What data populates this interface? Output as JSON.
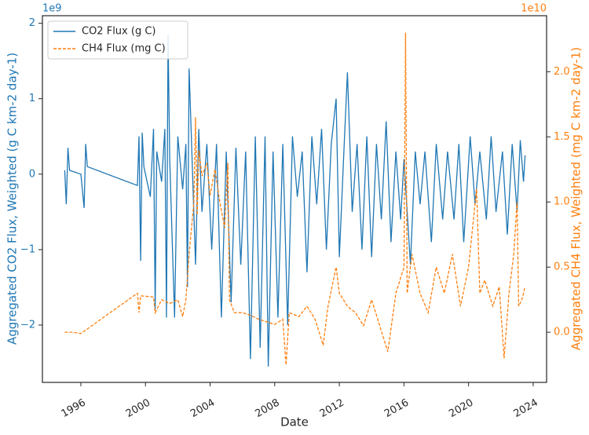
{
  "chart_data": {
    "type": "line",
    "xlabel": "Date",
    "ylabel": "Aggregated CO2 Flux, Weighted (g C km-2 day-1)",
    "y2label": "Aggregated CH4 Flux, Weighted (mg C km-2 day-1)",
    "y_offset": "1e9",
    "y2_offset": "1e10",
    "xlim": [
      1993.62,
      2024.83
    ],
    "xticks": [
      1996,
      2000,
      2004,
      2008,
      2012,
      2016,
      2020,
      2024
    ],
    "ylim": [
      -2.76,
      2.1
    ],
    "yticks": [
      {
        "value": -2,
        "label": "−2"
      },
      {
        "value": -1,
        "label": "−1"
      },
      0,
      1,
      2
    ],
    "y2lim": [
      -0.385,
      2.43
    ],
    "y2ticks": [
      {
        "value": 0,
        "label": "0.0"
      },
      0.5,
      {
        "value": 1,
        "label": "1.0"
      },
      1.5,
      {
        "value": 2,
        "label": "2.0"
      }
    ],
    "legend": "upper left",
    "grid": false,
    "series": [
      {
        "name": "CO2 Flux (g C)",
        "color": "#1f77b4",
        "linestyle": "solid",
        "axis": "y",
        "x": [
          1995.0,
          1995.1,
          1995.2,
          1995.3,
          1996.0,
          1996.2,
          1996.3,
          1996.4,
          1999.5,
          1999.6,
          1999.7,
          1999.8,
          1999.9,
          2000.3,
          2000.5,
          2000.6,
          2000.7,
          2001.0,
          2001.2,
          2001.3,
          2001.4,
          2001.5,
          2001.8,
          2002.0,
          2002.3,
          2002.5,
          2002.6,
          2002.7,
          2002.9,
          2003.1,
          2003.3,
          2003.5,
          2003.8,
          2004.1,
          2004.4,
          2004.7,
          2005.0,
          2005.3,
          2005.6,
          2005.9,
          2006.2,
          2006.5,
          2006.8,
          2007.1,
          2007.4,
          2007.6,
          2007.9,
          2008.2,
          2008.5,
          2008.8,
          2009.1,
          2009.4,
          2009.7,
          2010.0,
          2010.3,
          2010.6,
          2010.9,
          2011.2,
          2011.5,
          2011.8,
          2012.0,
          2012.3,
          2012.5,
          2012.8,
          2013.1,
          2013.4,
          2013.7,
          2014.0,
          2014.3,
          2014.6,
          2014.9,
          2015.2,
          2015.5,
          2015.8,
          2016.0,
          2016.4,
          2016.7,
          2017.0,
          2017.3,
          2017.7,
          2018.0,
          2018.4,
          2018.7,
          2019.1,
          2019.4,
          2019.7,
          2020.1,
          2020.4,
          2020.7,
          2021.1,
          2021.4,
          2021.7,
          2022.1,
          2022.4,
          2022.7,
          2023.0,
          2023.2,
          2023.4,
          2023.5
        ],
        "values": [
          0.05,
          -0.4,
          0.35,
          0.05,
          0.0,
          -0.45,
          0.4,
          0.1,
          -0.15,
          0.5,
          -1.15,
          0.55,
          0.1,
          -0.3,
          0.6,
          -1.8,
          0.3,
          -0.1,
          0.6,
          -1.9,
          1.85,
          0.2,
          -1.9,
          0.5,
          -0.2,
          0.4,
          -1.5,
          1.4,
          0.1,
          -1.2,
          0.6,
          -0.5,
          0.4,
          -1.0,
          0.4,
          -1.9,
          0.3,
          -1.7,
          0.35,
          -1.2,
          0.3,
          -2.45,
          0.5,
          -2.3,
          0.5,
          -2.55,
          0.3,
          -1.9,
          0.4,
          -2.0,
          0.5,
          -0.3,
          0.3,
          -1.3,
          0.5,
          -0.4,
          0.6,
          -1.0,
          0.4,
          1.0,
          -1.1,
          0.4,
          1.35,
          -0.5,
          0.4,
          -1.0,
          0.5,
          -1.1,
          0.4,
          -0.6,
          0.7,
          -0.9,
          0.3,
          -0.6,
          0.2,
          -1.2,
          0.3,
          -0.4,
          0.3,
          -0.9,
          0.4,
          -0.6,
          0.3,
          -0.6,
          0.4,
          -0.9,
          0.5,
          -0.4,
          0.3,
          -0.6,
          0.5,
          -0.5,
          0.3,
          -0.8,
          0.4,
          -0.5,
          0.45,
          -0.1,
          0.25
        ]
      },
      {
        "name": "CH4 Flux (mg C)",
        "color": "#ff7f0e",
        "linestyle": "dashed",
        "axis": "y2",
        "x": [
          1995.0,
          1995.5,
          1996.0,
          1999.5,
          1999.6,
          1999.7,
          2000.5,
          2000.6,
          2001.0,
          2001.5,
          2002.0,
          2002.3,
          2002.5,
          2002.7,
          2003.0,
          2003.1,
          2003.2,
          2003.3,
          2003.5,
          2003.8,
          2004.0,
          2004.3,
          2004.6,
          2004.9,
          2005.1,
          2005.2,
          2005.5,
          2006.0,
          2006.5,
          2007.0,
          2007.5,
          2008.0,
          2008.5,
          2008.7,
          2008.9,
          2009.5,
          2010.0,
          2010.5,
          2011.0,
          2011.3,
          2011.8,
          2012.0,
          2012.5,
          2013.0,
          2013.5,
          2014.0,
          2014.5,
          2015.0,
          2015.5,
          2016.0,
          2016.1,
          2016.2,
          2016.5,
          2017.0,
          2017.5,
          2018.0,
          2018.5,
          2019.0,
          2019.5,
          2020.0,
          2020.5,
          2020.7,
          2021.0,
          2021.5,
          2021.9,
          2022.2,
          2022.5,
          2022.8,
          2023.0,
          2023.1,
          2023.3,
          2023.5
        ],
        "values": [
          0.0,
          0.0,
          -0.01,
          0.3,
          0.15,
          0.28,
          0.27,
          0.15,
          0.25,
          0.22,
          0.25,
          0.12,
          0.25,
          0.6,
          1.0,
          1.65,
          0.9,
          1.4,
          1.2,
          1.3,
          1.05,
          1.25,
          1.0,
          0.8,
          1.3,
          0.25,
          0.15,
          0.15,
          0.13,
          0.1,
          0.08,
          0.06,
          0.1,
          -0.25,
          0.15,
          0.12,
          0.2,
          0.1,
          -0.1,
          0.2,
          0.5,
          0.3,
          0.2,
          0.15,
          0.05,
          0.25,
          0.05,
          -0.15,
          0.3,
          0.5,
          2.3,
          0.3,
          0.6,
          0.3,
          0.15,
          0.5,
          0.3,
          0.6,
          0.2,
          0.5,
          1.1,
          0.3,
          0.4,
          0.2,
          0.35,
          -0.2,
          0.3,
          0.6,
          1.0,
          0.2,
          0.25,
          0.35
        ]
      }
    ]
  }
}
